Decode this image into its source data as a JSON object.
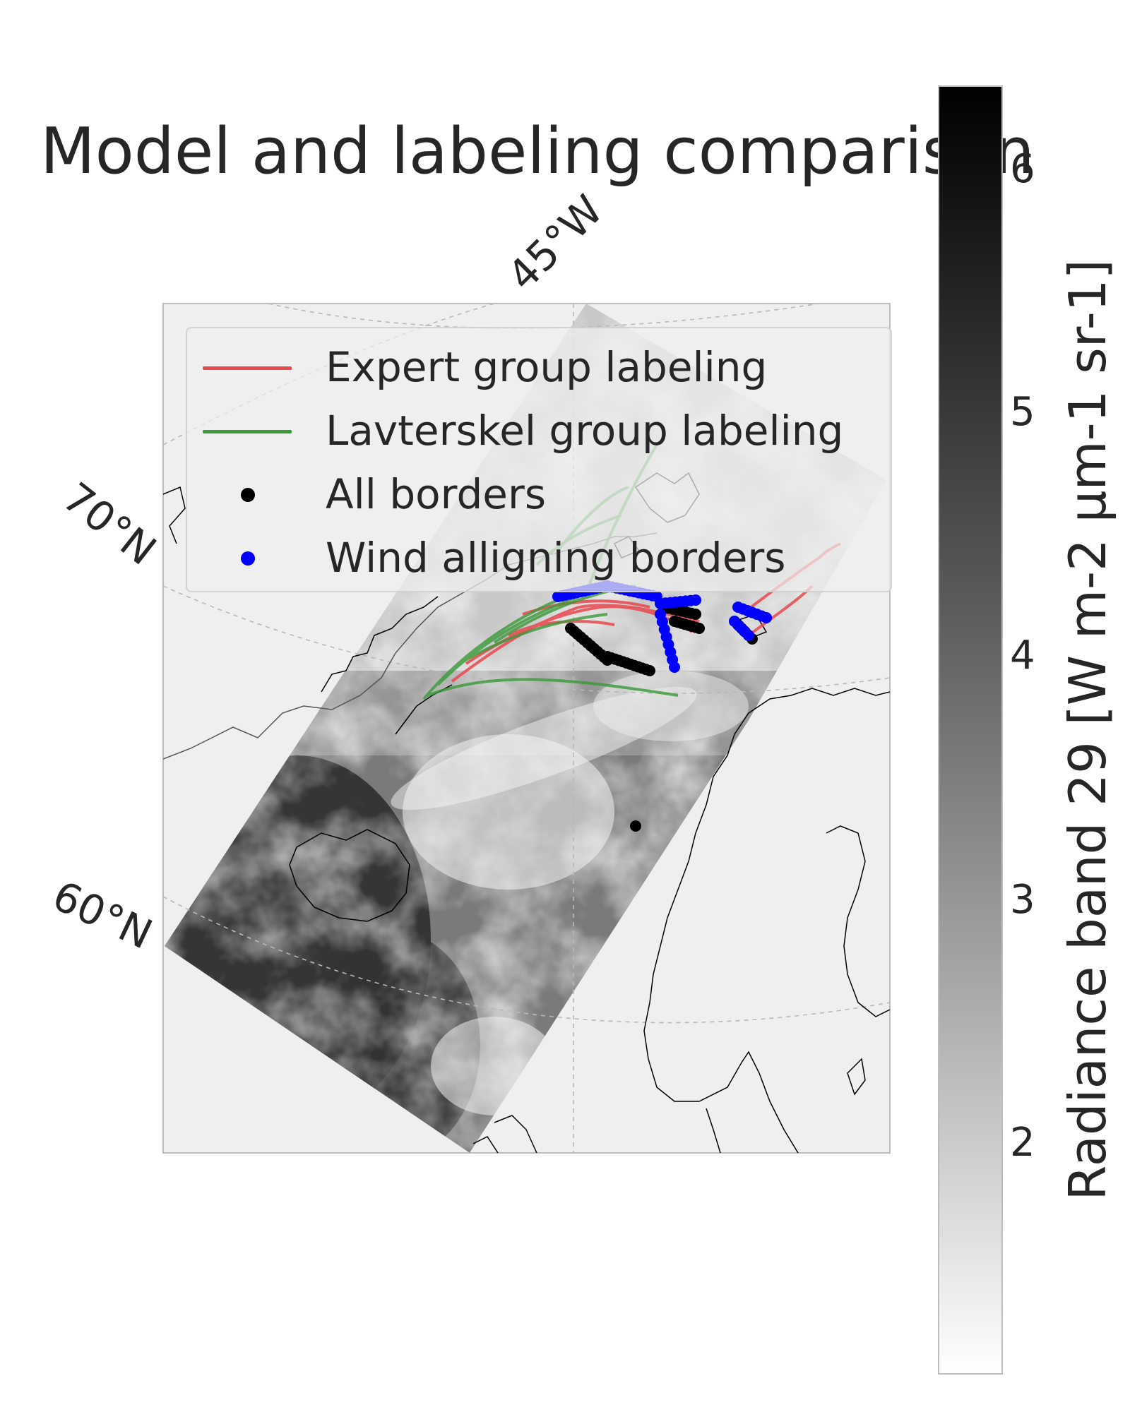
{
  "title": "Model and labeling comparison",
  "axes": {
    "lat_labels": [
      "70°N",
      "60°N"
    ],
    "lon_labels": [
      "45°W"
    ]
  },
  "legend": {
    "placement": "upper",
    "items": [
      {
        "label": "Expert group labeling",
        "symbol": "line",
        "color": "#e8484e"
      },
      {
        "label": "Lavterskel group labeling",
        "symbol": "line",
        "color": "#3a9a3a"
      },
      {
        "label": "All borders",
        "symbol": "dot",
        "color": "#000000"
      },
      {
        "label": "Wind alligning borders",
        "symbol": "dot",
        "color": "#0000ff"
      }
    ]
  },
  "colorbar": {
    "label": "Radiance band 29 [W m-2 μm-1 sr-1]",
    "ticks": [
      "6",
      "5",
      "4",
      "3",
      "2"
    ],
    "colormap": "greys"
  }
}
